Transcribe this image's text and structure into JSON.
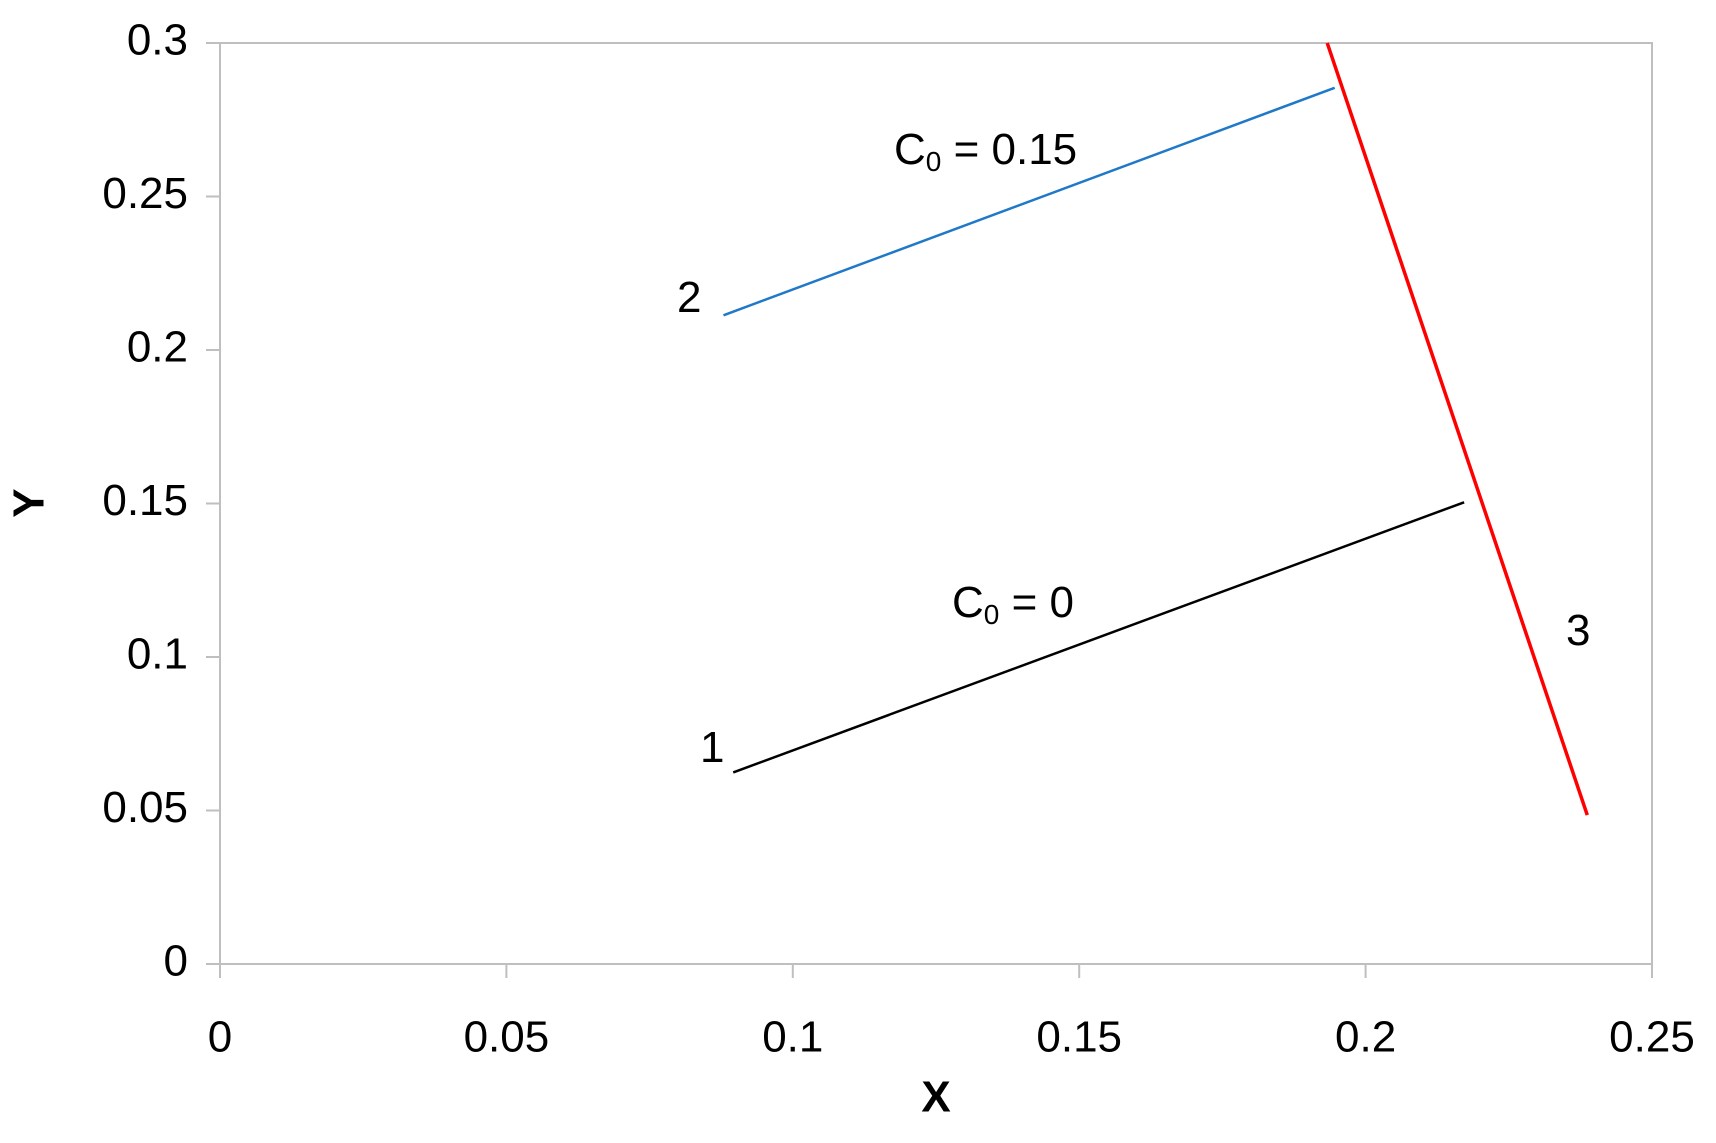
{
  "chart_data": {
    "type": "line",
    "x_label": "X",
    "y_label": "Y",
    "xlim": [
      0,
      0.25
    ],
    "ylim": [
      0,
      0.3
    ],
    "xticks": [
      0,
      0.05,
      0.1,
      0.15,
      0.2,
      0.25
    ],
    "yticks": [
      0,
      0.05,
      0.1,
      0.15,
      0.2,
      0.25,
      0.3
    ],
    "grid": false,
    "series": [
      {
        "color": "#000000",
        "x": [
          0.0896,
          0.2172
        ],
        "values": [
          0.0624,
          0.1504
        ]
      },
      {
        "color": "#1f78c8",
        "x": [
          0.0879,
          0.1946
        ],
        "values": [
          0.2113,
          0.2854
        ]
      },
      {
        "color": "#ff0000",
        "x": [
          0.1933,
          0.2387
        ],
        "values": [
          0.3,
          0.0485
        ]
      }
    ],
    "annotations": [
      {
        "text": "1"
      },
      {
        "text": "2"
      },
      {
        "text": "3"
      },
      {
        "text": "C",
        "subscript": "0",
        "suffix": " = 0"
      },
      {
        "text": "C",
        "subscript": "0",
        "suffix": " = 0.15"
      }
    ]
  }
}
